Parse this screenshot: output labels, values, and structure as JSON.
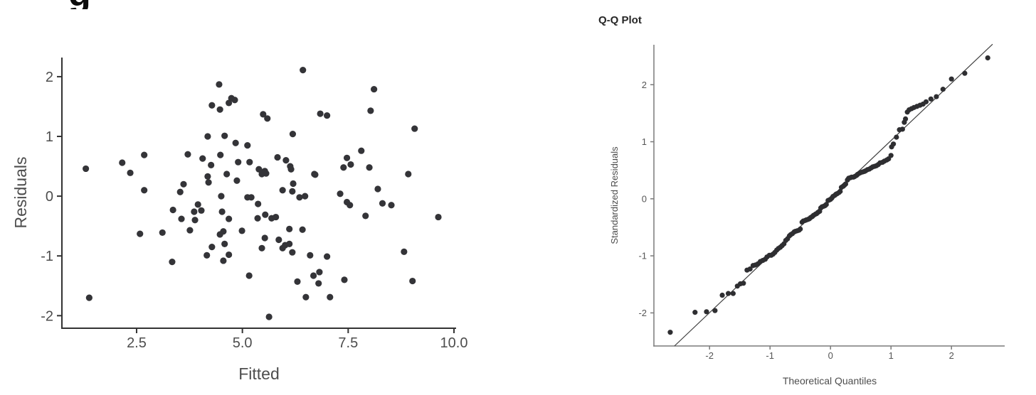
{
  "page": {
    "background": "#ffffff",
    "partial_title_fragment": "g"
  },
  "chart_data": [
    {
      "id": "residuals-vs-fitted",
      "type": "scatter",
      "title": "",
      "xlabel": "Fitted",
      "ylabel": "Residuals",
      "xlim": [
        0.735,
        10.05
      ],
      "ylim": [
        -2.21,
        2.32
      ],
      "xticks": [
        2.5,
        5.0,
        7.5,
        10.0
      ],
      "xtick_labels": [
        "2.5",
        "5.0",
        "7.5",
        "10.0"
      ],
      "yticks": [
        -2,
        -1,
        0,
        1,
        2
      ],
      "ytick_labels": [
        "-2",
        "-1",
        "0",
        "1",
        "2"
      ],
      "grid": false,
      "legend": null,
      "style": {
        "axis_color": "#333333",
        "tick_label_color": "#4d4d4d",
        "point_color": "#343438"
      },
      "points": [
        [
          4.45,
          1.87
        ],
        [
          4.28,
          1.52
        ],
        [
          4.47,
          1.45
        ],
        [
          4.68,
          1.56
        ],
        [
          4.18,
          1.0
        ],
        [
          4.58,
          1.01
        ],
        [
          3.71,
          0.7
        ],
        [
          4.06,
          0.63
        ],
        [
          4.26,
          0.52
        ],
        [
          4.48,
          0.69
        ],
        [
          1.3,
          0.46
        ],
        [
          2.16,
          0.56
        ],
        [
          2.35,
          0.39
        ],
        [
          2.68,
          0.69
        ],
        [
          4.18,
          0.33
        ],
        [
          4.63,
          0.37
        ],
        [
          2.68,
          0.1
        ],
        [
          3.61,
          0.2
        ],
        [
          3.53,
          0.07
        ],
        [
          4.2,
          0.23
        ],
        [
          4.87,
          0.26
        ],
        [
          5.46,
          0.37
        ],
        [
          4.5,
          0.0
        ],
        [
          5.12,
          -0.02
        ],
        [
          5.21,
          -0.02
        ],
        [
          5.37,
          -0.13
        ],
        [
          3.95,
          -0.14
        ],
        [
          4.03,
          -0.24
        ],
        [
          3.36,
          -0.23
        ],
        [
          3.86,
          -0.26
        ],
        [
          4.52,
          -0.26
        ],
        [
          4.68,
          -0.38
        ],
        [
          3.56,
          -0.38
        ],
        [
          3.88,
          -0.4
        ],
        [
          5.36,
          -0.37
        ],
        [
          5.54,
          -0.31
        ],
        [
          5.69,
          -0.37
        ],
        [
          3.76,
          -0.57
        ],
        [
          2.58,
          -0.63
        ],
        [
          3.11,
          -0.61
        ],
        [
          4.47,
          -0.64
        ],
        [
          4.55,
          -0.59
        ],
        [
          4.99,
          -0.58
        ],
        [
          5.53,
          -0.7
        ],
        [
          4.28,
          -0.85
        ],
        [
          4.58,
          -0.8
        ],
        [
          5.46,
          -0.87
        ],
        [
          4.16,
          -0.99
        ],
        [
          4.68,
          -0.98
        ],
        [
          4.55,
          -1.08
        ],
        [
          3.34,
          -1.1
        ],
        [
          5.16,
          -1.33
        ],
        [
          1.38,
          -1.7
        ],
        [
          5.63,
          -2.02
        ],
        [
          6.2,
          0.21
        ],
        [
          5.95,
          0.1
        ],
        [
          6.18,
          0.08
        ],
        [
          6.35,
          -0.02
        ],
        [
          6.48,
          0.0
        ],
        [
          6.7,
          0.37
        ],
        [
          7.31,
          0.04
        ],
        [
          7.47,
          -0.1
        ],
        [
          7.54,
          -0.15
        ],
        [
          7.91,
          -0.33
        ],
        [
          8.2,
          0.12
        ],
        [
          8.31,
          -0.12
        ],
        [
          8.52,
          -0.15
        ],
        [
          8.92,
          0.37
        ],
        [
          9.63,
          -0.35
        ],
        [
          5.79,
          -0.35
        ],
        [
          6.11,
          -0.55
        ],
        [
          6.42,
          -0.56
        ],
        [
          5.86,
          -0.73
        ],
        [
          5.95,
          -0.87
        ],
        [
          6.01,
          -0.82
        ],
        [
          6.11,
          -0.8
        ],
        [
          6.18,
          -0.94
        ],
        [
          6.6,
          -0.99
        ],
        [
          7.0,
          -1.01
        ],
        [
          8.82,
          -0.93
        ],
        [
          6.68,
          -1.33
        ],
        [
          6.82,
          -1.27
        ],
        [
          6.3,
          -1.43
        ],
        [
          6.8,
          -1.46
        ],
        [
          9.02,
          -1.42
        ],
        [
          6.5,
          -1.69
        ],
        [
          7.07,
          -1.69
        ],
        [
          7.41,
          -1.4
        ],
        [
          6.43,
          2.11
        ],
        [
          8.11,
          1.79
        ],
        [
          4.82,
          1.61
        ],
        [
          4.74,
          1.64
        ],
        [
          5.49,
          1.37
        ],
        [
          5.59,
          1.3
        ],
        [
          8.03,
          1.43
        ],
        [
          6.84,
          1.38
        ],
        [
          7.0,
          1.35
        ],
        [
          6.19,
          1.04
        ],
        [
          4.84,
          0.89
        ],
        [
          5.12,
          0.85
        ],
        [
          4.9,
          0.57
        ],
        [
          5.17,
          0.57
        ],
        [
          5.39,
          0.45
        ],
        [
          5.56,
          0.38
        ],
        [
          5.53,
          0.42
        ],
        [
          5.83,
          0.65
        ],
        [
          6.03,
          0.6
        ],
        [
          6.13,
          0.5
        ],
        [
          6.15,
          0.45
        ],
        [
          6.72,
          0.36
        ],
        [
          7.81,
          0.76
        ],
        [
          7.47,
          0.64
        ],
        [
          7.56,
          0.53
        ],
        [
          7.39,
          0.48
        ],
        [
          8.0,
          0.48
        ],
        [
          9.07,
          1.13
        ]
      ]
    },
    {
      "id": "qq-plot",
      "type": "scatter",
      "title": "Q-Q Plot",
      "xlabel": "Theoretical Quantiles",
      "ylabel": "Standardized Residuals",
      "xlim": [
        -2.92,
        2.88
      ],
      "ylim": [
        -2.58,
        2.7
      ],
      "xticks": [
        -2,
        -1,
        0,
        1,
        2
      ],
      "xtick_labels": [
        "-2",
        "-1",
        "0",
        "1",
        "2"
      ],
      "yticks": [
        -2,
        -1,
        0,
        1,
        2
      ],
      "ytick_labels": [
        "-2",
        "-1",
        "0",
        "1",
        "2"
      ],
      "grid": false,
      "legend": null,
      "style": {
        "axis_color": "#7a7a7a",
        "tick_label_color": "#555555",
        "point_color": "#2e2e31",
        "ref_line_color": "#3f3f3f"
      },
      "reference_line": {
        "from": [
          -2.58,
          -2.58
        ],
        "to": [
          2.68,
          2.71
        ]
      },
      "points": [
        [
          -2.65,
          -2.34
        ],
        [
          -2.24,
          -1.99
        ],
        [
          -2.05,
          -1.98
        ],
        [
          -1.91,
          -1.96
        ],
        [
          -1.79,
          -1.69
        ],
        [
          -1.69,
          -1.66
        ],
        [
          -1.61,
          -1.66
        ],
        [
          -1.54,
          -1.53
        ],
        [
          -1.49,
          -1.49
        ],
        [
          -1.44,
          -1.48
        ],
        [
          -1.38,
          -1.25
        ],
        [
          -1.33,
          -1.23
        ],
        [
          -1.28,
          -1.17
        ],
        [
          -1.24,
          -1.16
        ],
        [
          -1.2,
          -1.14
        ],
        [
          -1.16,
          -1.1
        ],
        [
          -1.12,
          -1.08
        ],
        [
          -1.08,
          -1.06
        ],
        [
          -1.05,
          -1.02
        ],
        [
          -1.01,
          -0.99
        ],
        [
          -0.98,
          -0.99
        ],
        [
          -0.95,
          -0.97
        ],
        [
          -0.92,
          -0.94
        ],
        [
          -0.89,
          -0.9
        ],
        [
          -0.86,
          -0.87
        ],
        [
          -0.83,
          -0.85
        ],
        [
          -0.8,
          -0.82
        ],
        [
          -0.77,
          -0.79
        ],
        [
          -0.74,
          -0.73
        ],
        [
          -0.71,
          -0.7
        ],
        [
          -0.68,
          -0.65
        ],
        [
          -0.66,
          -0.63
        ],
        [
          -0.63,
          -0.61
        ],
        [
          -0.6,
          -0.58
        ],
        [
          -0.58,
          -0.57
        ],
        [
          -0.55,
          -0.56
        ],
        [
          -0.52,
          -0.55
        ],
        [
          -0.5,
          -0.53
        ],
        [
          -0.47,
          -0.41
        ],
        [
          -0.45,
          -0.39
        ],
        [
          -0.42,
          -0.38
        ],
        [
          -0.4,
          -0.37
        ],
        [
          -0.37,
          -0.36
        ],
        [
          -0.35,
          -0.35
        ],
        [
          -0.33,
          -0.33
        ],
        [
          -0.3,
          -0.31
        ],
        [
          -0.28,
          -0.29
        ],
        [
          -0.25,
          -0.27
        ],
        [
          -0.23,
          -0.26
        ],
        [
          -0.21,
          -0.24
        ],
        [
          -0.18,
          -0.22
        ],
        [
          -0.16,
          -0.16
        ],
        [
          -0.14,
          -0.14
        ],
        [
          -0.11,
          -0.13
        ],
        [
          -0.09,
          -0.12
        ],
        [
          -0.07,
          -0.1
        ],
        [
          -0.04,
          -0.03
        ],
        [
          -0.02,
          -0.02
        ],
        [
          0.0,
          -0.01
        ],
        [
          0.02,
          0.01
        ],
        [
          0.04,
          0.04
        ],
        [
          0.07,
          0.06
        ],
        [
          0.09,
          0.08
        ],
        [
          0.11,
          0.09
        ],
        [
          0.14,
          0.11
        ],
        [
          0.16,
          0.13
        ],
        [
          0.18,
          0.2
        ],
        [
          0.21,
          0.22
        ],
        [
          0.23,
          0.24
        ],
        [
          0.25,
          0.26
        ],
        [
          0.28,
          0.33
        ],
        [
          0.3,
          0.36
        ],
        [
          0.33,
          0.37
        ],
        [
          0.35,
          0.38
        ],
        [
          0.38,
          0.38
        ],
        [
          0.4,
          0.39
        ],
        [
          0.43,
          0.41
        ],
        [
          0.45,
          0.43
        ],
        [
          0.48,
          0.45
        ],
        [
          0.5,
          0.46
        ],
        [
          0.53,
          0.47
        ],
        [
          0.56,
          0.48
        ],
        [
          0.58,
          0.49
        ],
        [
          0.61,
          0.51
        ],
        [
          0.64,
          0.52
        ],
        [
          0.67,
          0.54
        ],
        [
          0.7,
          0.56
        ],
        [
          0.73,
          0.57
        ],
        [
          0.76,
          0.58
        ],
        [
          0.79,
          0.6
        ],
        [
          0.82,
          0.63
        ],
        [
          0.86,
          0.64
        ],
        [
          0.89,
          0.66
        ],
        [
          0.93,
          0.68
        ],
        [
          0.96,
          0.7
        ],
        [
          1.0,
          0.76
        ],
        [
          1.01,
          0.91
        ],
        [
          1.04,
          0.96
        ],
        [
          1.09,
          1.08
        ],
        [
          1.14,
          1.21
        ],
        [
          1.19,
          1.22
        ],
        [
          1.22,
          1.34
        ],
        [
          1.24,
          1.4
        ],
        [
          1.27,
          1.52
        ],
        [
          1.3,
          1.56
        ],
        [
          1.34,
          1.58
        ],
        [
          1.38,
          1.6
        ],
        [
          1.43,
          1.62
        ],
        [
          1.48,
          1.64
        ],
        [
          1.53,
          1.66
        ],
        [
          1.58,
          1.7
        ],
        [
          1.66,
          1.75
        ],
        [
          1.75,
          1.79
        ],
        [
          1.86,
          1.92
        ],
        [
          2.0,
          2.1
        ],
        [
          2.22,
          2.2
        ],
        [
          2.6,
          2.47
        ]
      ]
    }
  ]
}
